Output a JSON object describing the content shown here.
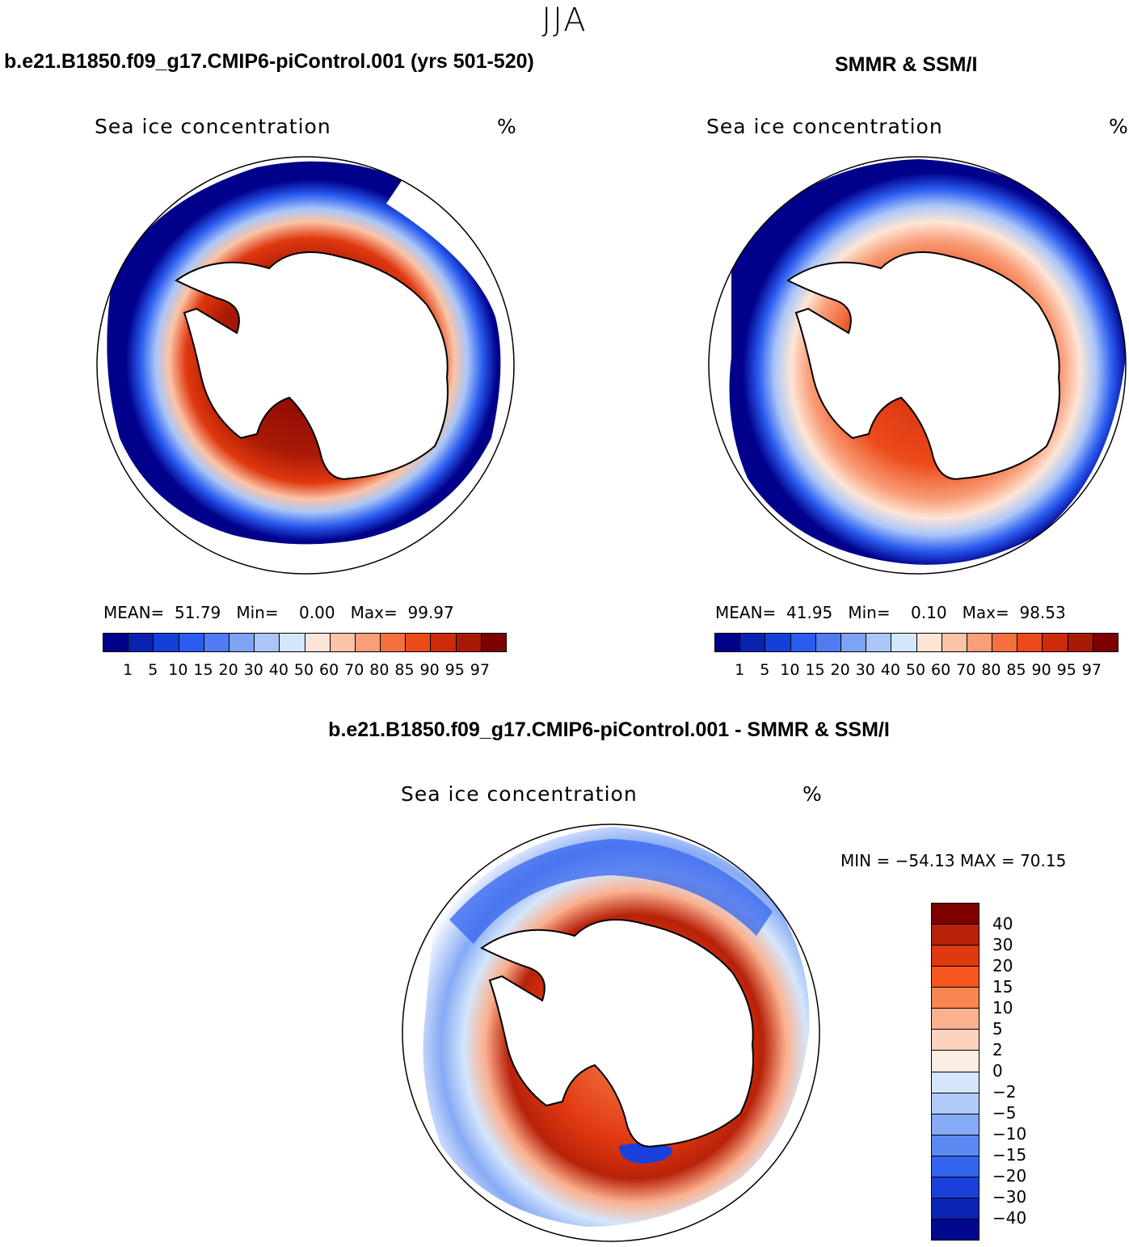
{
  "season": "JJA",
  "panels": [
    {
      "title": "b.e21.B1850.f09_g17.CMIP6-piControl.001 (yrs 501-520)",
      "variable": "Sea ice concentration",
      "units": "%",
      "stats": {
        "mean_label": "MEAN=",
        "mean": "51.79",
        "min_label": "Min=",
        "min": "0.00",
        "max_label": "Max=",
        "max": "99.97"
      }
    },
    {
      "title": "SMMR & SSM/I",
      "variable": "Sea ice concentration",
      "units": "%",
      "stats": {
        "mean_label": "MEAN=",
        "mean": "41.95",
        "min_label": "Min=",
        "min": "0.10",
        "max_label": "Max=",
        "max": "98.53"
      }
    }
  ],
  "concentration_colorbar": {
    "ticks": [
      "1",
      "5",
      "10",
      "15",
      "20",
      "30",
      "40",
      "50",
      "60",
      "70",
      "80",
      "85",
      "90",
      "95",
      "97"
    ],
    "colors": [
      "#00008b",
      "#0a22b0",
      "#1240d8",
      "#2a5cf0",
      "#4f7cf2",
      "#7ea2f4",
      "#aac6f8",
      "#d4e6fb",
      "#fde5d6",
      "#fbc4a6",
      "#f99e78",
      "#f5703f",
      "#ec4a1a",
      "#cd2a0a",
      "#a91a06",
      "#7e0000"
    ]
  },
  "difference_panel": {
    "title": "b.e21.B1850.f09_g17.CMIP6-piControl.001 - SMMR & SSM/I",
    "variable": "Sea ice concentration",
    "units": "%",
    "range_text": "MIN = −54.13 MAX =   70.15"
  },
  "difference_colorbar": {
    "ticks": [
      "40",
      "30",
      "20",
      "15",
      "10",
      "5",
      "2",
      "0",
      "−2",
      "−5",
      "−10",
      "−15",
      "−20",
      "−30",
      "−40"
    ],
    "colors": [
      "#7e0000",
      "#b8220a",
      "#e0380f",
      "#f7551e",
      "#f98552",
      "#fbb08e",
      "#fcd3bd",
      "#fdeee3",
      "#d5e6fb",
      "#b1cbf8",
      "#86aaf5",
      "#5d88f2",
      "#3464ee",
      "#1a40dc",
      "#0c24b6",
      "#02088e"
    ]
  }
}
